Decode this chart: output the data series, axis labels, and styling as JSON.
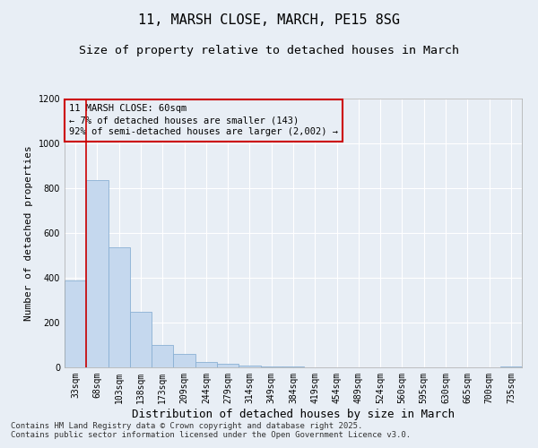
{
  "title": "11, MARSH CLOSE, MARCH, PE15 8SG",
  "subtitle": "Size of property relative to detached houses in March",
  "xlabel": "Distribution of detached houses by size in March",
  "ylabel": "Number of detached properties",
  "bar_color": "#c5d8ee",
  "bar_edge_color": "#8ab0d4",
  "background_color": "#e8eef5",
  "grid_color": "#ffffff",
  "categories": [
    "33sqm",
    "68sqm",
    "103sqm",
    "138sqm",
    "173sqm",
    "209sqm",
    "244sqm",
    "279sqm",
    "314sqm",
    "349sqm",
    "384sqm",
    "419sqm",
    "454sqm",
    "489sqm",
    "524sqm",
    "560sqm",
    "595sqm",
    "630sqm",
    "665sqm",
    "700sqm",
    "735sqm"
  ],
  "values": [
    390,
    835,
    535,
    248,
    100,
    60,
    25,
    18,
    10,
    5,
    3,
    2,
    2,
    1,
    1,
    1,
    1,
    1,
    0,
    0,
    5
  ],
  "ylim": [
    0,
    1200
  ],
  "yticks": [
    0,
    200,
    400,
    600,
    800,
    1000,
    1200
  ],
  "vline_x": 0.5,
  "vline_color": "#cc0000",
  "annotation_text": "11 MARSH CLOSE: 60sqm\n← 7% of detached houses are smaller (143)\n92% of semi-detached houses are larger (2,002) →",
  "annotation_box_color": "#cc0000",
  "footer_text": "Contains HM Land Registry data © Crown copyright and database right 2025.\nContains public sector information licensed under the Open Government Licence v3.0.",
  "title_fontsize": 11,
  "subtitle_fontsize": 9.5,
  "xlabel_fontsize": 9,
  "ylabel_fontsize": 8,
  "tick_fontsize": 7,
  "annotation_fontsize": 7.5,
  "footer_fontsize": 6.5
}
